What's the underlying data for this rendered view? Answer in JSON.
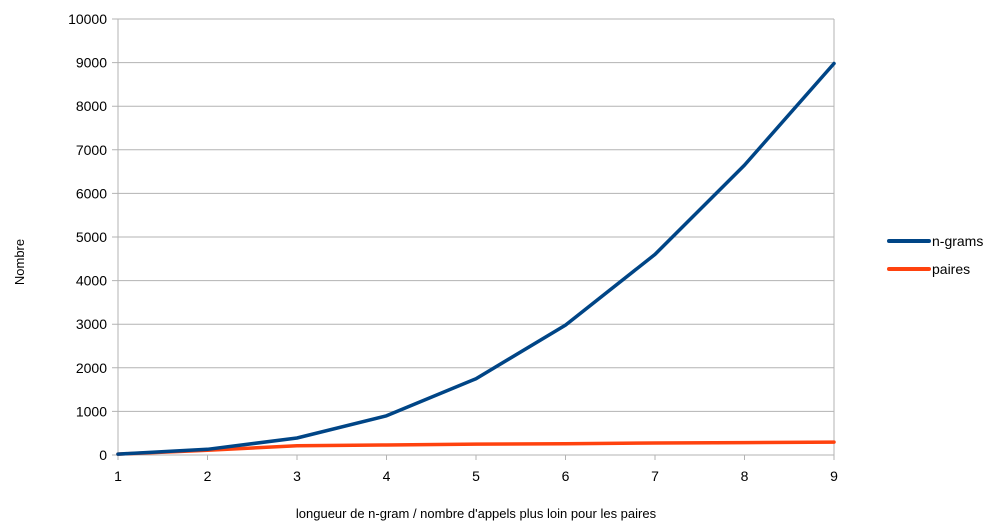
{
  "chart_data": {
    "type": "line",
    "title": "",
    "xlabel": "longueur de n-gram / nombre d'appels plus loin pour les paires",
    "ylabel": "Nombre",
    "x": [
      1,
      2,
      3,
      4,
      5,
      6,
      7,
      8,
      9
    ],
    "x_ticks": [
      "1",
      "2",
      "3",
      "4",
      "5",
      "6",
      "7",
      "8",
      "9"
    ],
    "xlim": [
      1,
      9
    ],
    "ylim": [
      0,
      10000
    ],
    "y_ticks": [
      "0",
      "1000",
      "2000",
      "3000",
      "4000",
      "5000",
      "6000",
      "7000",
      "8000",
      "9000",
      "10000"
    ],
    "grid": "horizontal",
    "legend_position": "right",
    "series": [
      {
        "name": "n-grams",
        "color": "#004586",
        "values": [
          20,
          130,
          390,
          900,
          1750,
          2980,
          4600,
          6650,
          8980
        ]
      },
      {
        "name": "paires",
        "color": "#ff420e",
        "values": [
          20,
          110,
          210,
          230,
          250,
          260,
          275,
          285,
          295
        ]
      }
    ]
  }
}
